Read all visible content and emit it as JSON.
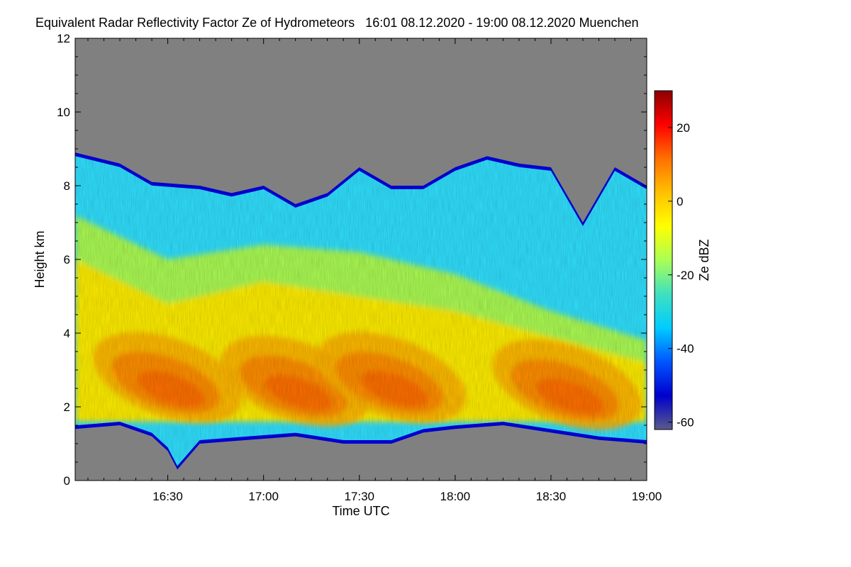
{
  "chart_data": {
    "type": "heatmap",
    "title": "Equivalent Radar Reflectivity Factor Ze of Hydrometeors   16:01 08.12.2020 - 19:00 08.12.2020 Muenchen",
    "xlabel": "Time UTC",
    "ylabel": "Height km",
    "colorbar_label": "Ze dBZ",
    "x_range_minutes": [
      961,
      1140
    ],
    "xlim": [
      "16:01",
      "19:00"
    ],
    "x_ticks": [
      {
        "label": "16:30",
        "minute": 990
      },
      {
        "label": "17:00",
        "minute": 1020
      },
      {
        "label": "17:30",
        "minute": 1050
      },
      {
        "label": "18:00",
        "minute": 1080
      },
      {
        "label": "18:30",
        "minute": 1110
      },
      {
        "label": "19:00",
        "minute": 1140
      }
    ],
    "ylim": [
      0,
      12
    ],
    "y_ticks": [
      0,
      2,
      4,
      6,
      8,
      10,
      12
    ],
    "colorbar_range": [
      -62,
      30
    ],
    "colorbar_ticks": [
      20,
      0,
      -20,
      -40,
      -60
    ],
    "no_signal_color": "#808080",
    "colormap": [
      "#5a5a8a",
      "#0000cd",
      "#0055ff",
      "#00ccff",
      "#40e0c0",
      "#aaff55",
      "#ffff00",
      "#ffc000",
      "#ff7000",
      "#ff0000",
      "#8b0000"
    ],
    "cloud_top_km": [
      [
        961,
        8.9
      ],
      [
        975,
        8.6
      ],
      [
        985,
        8.1
      ],
      [
        1000,
        8.0
      ],
      [
        1010,
        7.8
      ],
      [
        1020,
        8.0
      ],
      [
        1030,
        7.5
      ],
      [
        1040,
        7.8
      ],
      [
        1050,
        8.5
      ],
      [
        1060,
        8.0
      ],
      [
        1070,
        8.0
      ],
      [
        1080,
        8.5
      ],
      [
        1090,
        8.8
      ],
      [
        1100,
        8.6
      ],
      [
        1110,
        8.5
      ],
      [
        1120,
        7.0
      ],
      [
        1130,
        8.5
      ],
      [
        1140,
        8.0
      ]
    ],
    "cloud_base_km": [
      [
        961,
        1.4
      ],
      [
        975,
        1.5
      ],
      [
        985,
        1.2
      ],
      [
        990,
        0.8
      ],
      [
        993,
        0.3
      ],
      [
        1000,
        1.0
      ],
      [
        1015,
        1.1
      ],
      [
        1030,
        1.2
      ],
      [
        1045,
        1.0
      ],
      [
        1060,
        1.0
      ],
      [
        1070,
        1.3
      ],
      [
        1080,
        1.4
      ],
      [
        1095,
        1.5
      ],
      [
        1110,
        1.3
      ],
      [
        1125,
        1.1
      ],
      [
        1140,
        1.0
      ]
    ],
    "max_reflectivity_layers": [
      {
        "center_minute": 990,
        "height_km": 2.8,
        "peak_dbz": 10
      },
      {
        "center_minute": 1030,
        "height_km": 2.7,
        "peak_dbz": 10
      },
      {
        "center_minute": 1060,
        "height_km": 2.8,
        "peak_dbz": 10
      },
      {
        "center_minute": 1115,
        "height_km": 2.6,
        "peak_dbz": 12
      }
    ]
  }
}
